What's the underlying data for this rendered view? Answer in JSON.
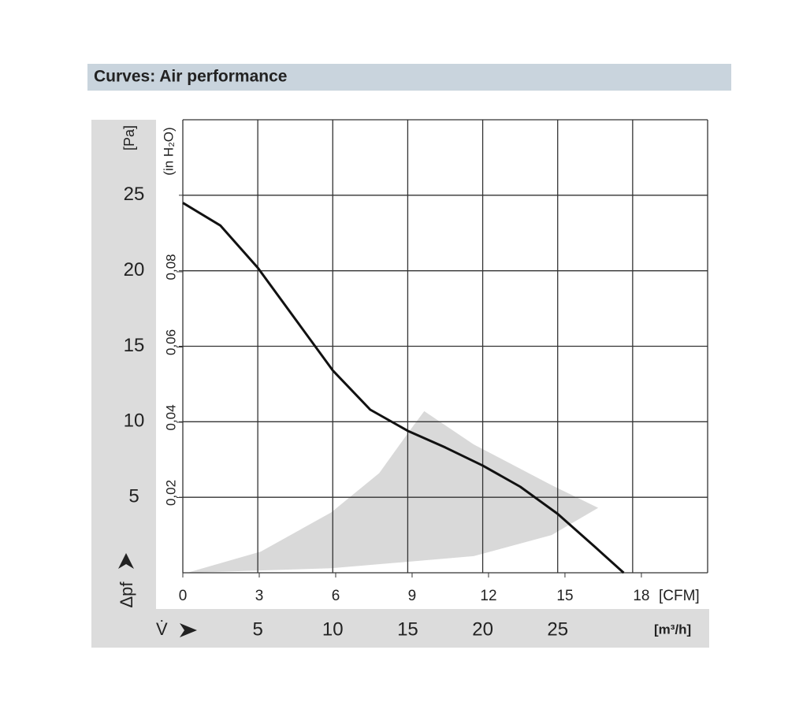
{
  "chart_data": {
    "type": "line",
    "title": "Curves: Air performance",
    "xlabel": "V̇",
    "xunit": "[m³/h]",
    "ylabel": "Δpf",
    "yunit": "[Pa]",
    "x2unit": "[CFM]",
    "y2label": "(in H₂O)",
    "xlim": [
      0,
      35
    ],
    "ylim": [
      0,
      30
    ],
    "x2lim": [
      0,
      20.6
    ],
    "y2lim": [
      0,
      0.1204
    ],
    "xticks": [
      5,
      10,
      15,
      20,
      25
    ],
    "yticks": [
      5,
      10,
      15,
      20,
      25
    ],
    "x2ticks": [
      0,
      3,
      6,
      9,
      12,
      15,
      18
    ],
    "y2ticks": [
      {
        "value": 0.02,
        "label": "0,02"
      },
      {
        "value": 0.04,
        "label": "0,04"
      },
      {
        "value": 0.06,
        "label": "0,06"
      },
      {
        "value": 0.08,
        "label": "0,08"
      }
    ],
    "xgrid": [
      0,
      5,
      10,
      15,
      20,
      25,
      30,
      35
    ],
    "ygrid": [
      0,
      5,
      10,
      15,
      20,
      25,
      30
    ],
    "grid": true,
    "shaded_region": {
      "color": "#d9d9d9",
      "x": [
        0.3,
        5.2,
        9.9,
        13.1,
        15.2,
        16.1,
        19.4,
        24.6,
        27.7,
        24.6,
        19.4,
        9.9
      ],
      "values": [
        0,
        1.4,
        4.0,
        6.6,
        9.5,
        10.7,
        8.5,
        5.8,
        4.3,
        2.5,
        1.1,
        0.3
      ]
    },
    "series": [
      {
        "color": "#111111",
        "x": [
          0,
          2.5,
          5,
          7.5,
          10,
          12.5,
          15,
          17.5,
          20,
          22.5,
          25,
          27.5,
          29.4
        ],
        "values": [
          24.5,
          23.0,
          20.2,
          16.8,
          13.4,
          10.8,
          9.4,
          8.3,
          7.1,
          5.7,
          3.9,
          1.7,
          0
        ]
      }
    ]
  }
}
